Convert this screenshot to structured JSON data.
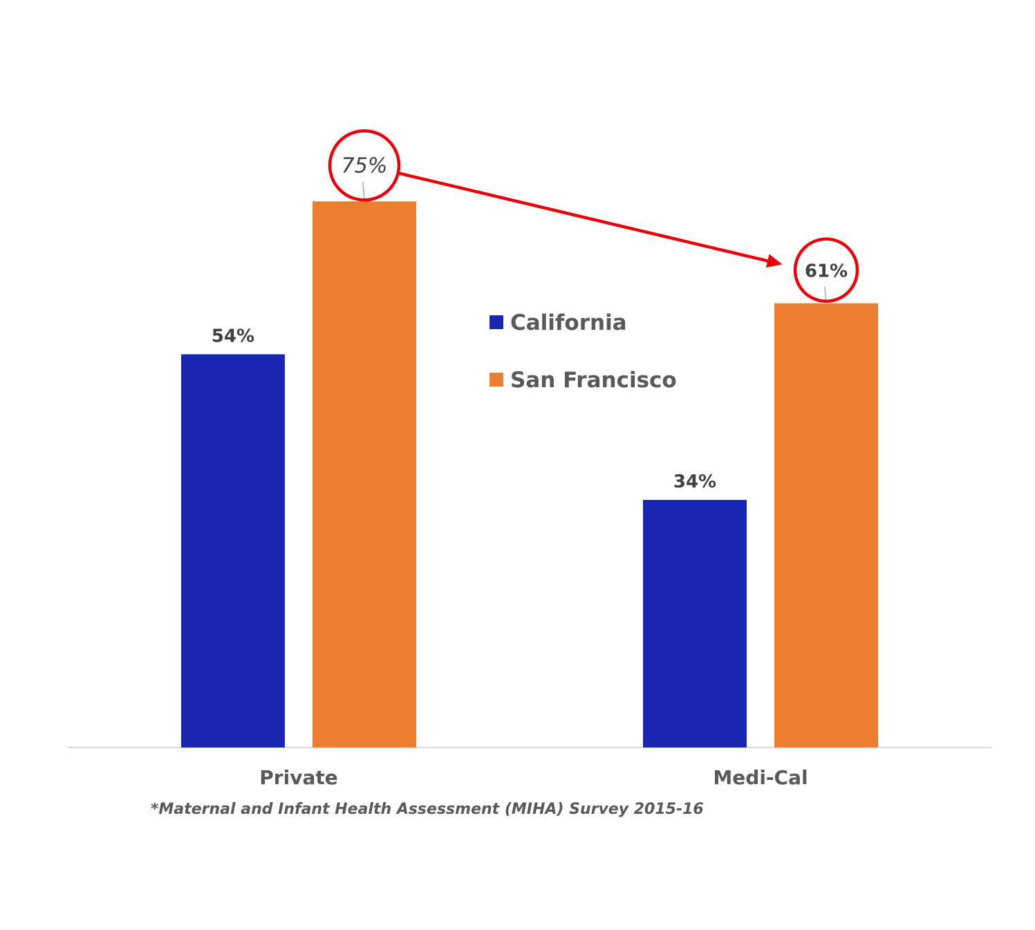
{
  "chart_data": {
    "type": "bar",
    "categories": [
      "Private",
      "Medi-Cal"
    ],
    "series": [
      {
        "name": "California",
        "values": [
          54,
          34
        ],
        "labels": [
          "54%",
          "34%"
        ],
        "color": "#1a27b3"
      },
      {
        "name": "San Francisco",
        "values": [
          75,
          61
        ],
        "labels": [
          "75%",
          "61%"
        ],
        "color": "#ed7d31"
      }
    ],
    "ylim": [
      0,
      100
    ],
    "grid": false,
    "legend_placement": "center",
    "annotations": [
      {
        "type": "circle",
        "series": "San Francisco",
        "category": "Private",
        "color": "#e8000b"
      },
      {
        "type": "circle",
        "series": "San Francisco",
        "category": "Medi-Cal",
        "color": "#e8000b"
      },
      {
        "type": "arrow",
        "from": "Private",
        "to": "Medi-Cal",
        "color": "#e8000b"
      }
    ]
  },
  "footnote": "*Maternal and Infant Health Assessment (MIHA) Survey 2015-16",
  "colors": {
    "axis": "#d9d9d9",
    "label_text": "#404040",
    "category_text": "#595959",
    "legend_text": "#595959",
    "annotation": "#e8000b"
  }
}
